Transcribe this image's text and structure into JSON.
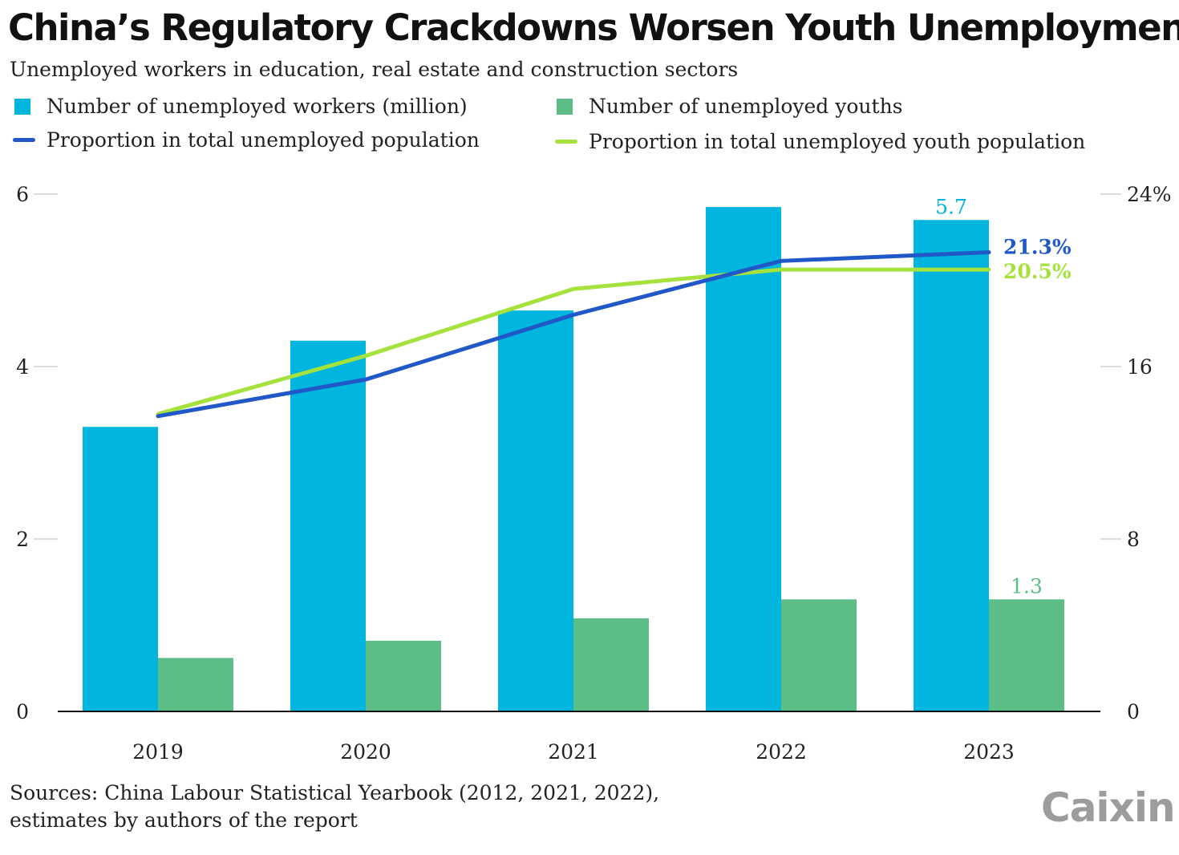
{
  "title": "China’s Regulatory Crackdowns Worsen Youth Unemployment",
  "subtitle": "Unemployed workers in education, real estate and construction sectors",
  "legend": [
    {
      "label": "Number of unemployed workers (million)",
      "color": "#00b5de",
      "kind": "square"
    },
    {
      "label": "Number of unemployed youths",
      "color": "#5cbd87",
      "kind": "square"
    },
    {
      "label": "Proportion in total unemployed population",
      "color": "#2058c8",
      "kind": "line"
    },
    {
      "label": "Proportion in total unemployed youth population",
      "color": "#a6e23e",
      "kind": "line"
    }
  ],
  "chart_data": {
    "type": "bar+line",
    "categories": [
      "2019",
      "2020",
      "2021",
      "2022",
      "2023"
    ],
    "left_axis": {
      "ylim": [
        0,
        6
      ],
      "ticks": [
        "0",
        "2",
        "4",
        "6"
      ]
    },
    "right_axis": {
      "ylim": [
        0,
        24
      ],
      "ticks": [
        "0",
        "8",
        "16",
        "24%"
      ]
    },
    "series": [
      {
        "name": "Number of unemployed workers (million)",
        "type": "bar",
        "axis": "left",
        "color": "#00b5de",
        "values": [
          3.3,
          4.3,
          4.65,
          5.85,
          5.7
        ],
        "data_labels": [
          "",
          "",
          "",
          "",
          "5.7"
        ]
      },
      {
        "name": "Number of unemployed youths",
        "type": "bar",
        "axis": "left",
        "color": "#5cbd87",
        "values": [
          0.62,
          0.82,
          1.08,
          1.3,
          1.3
        ],
        "data_labels": [
          "",
          "",
          "",
          "",
          "1.3"
        ]
      },
      {
        "name": "Proportion in total unemployed population",
        "type": "line",
        "axis": "right",
        "color": "#2058c8",
        "values": [
          13.7,
          15.4,
          18.4,
          20.9,
          21.3
        ],
        "data_labels": [
          "",
          "",
          "",
          "",
          "21.3%"
        ]
      },
      {
        "name": "Proportion in total unemployed youth population",
        "type": "line",
        "axis": "right",
        "color": "#a6e23e",
        "values": [
          13.8,
          16.5,
          19.6,
          20.5,
          20.5
        ],
        "data_labels": [
          "",
          "",
          "",
          "",
          "20.5%"
        ]
      }
    ]
  },
  "footer": {
    "sources": "Sources: China Labour Statistical Yearbook (2012, 2021, 2022),",
    "sources_line2": "estimates by authors of the report",
    "logo": "Caixin"
  }
}
